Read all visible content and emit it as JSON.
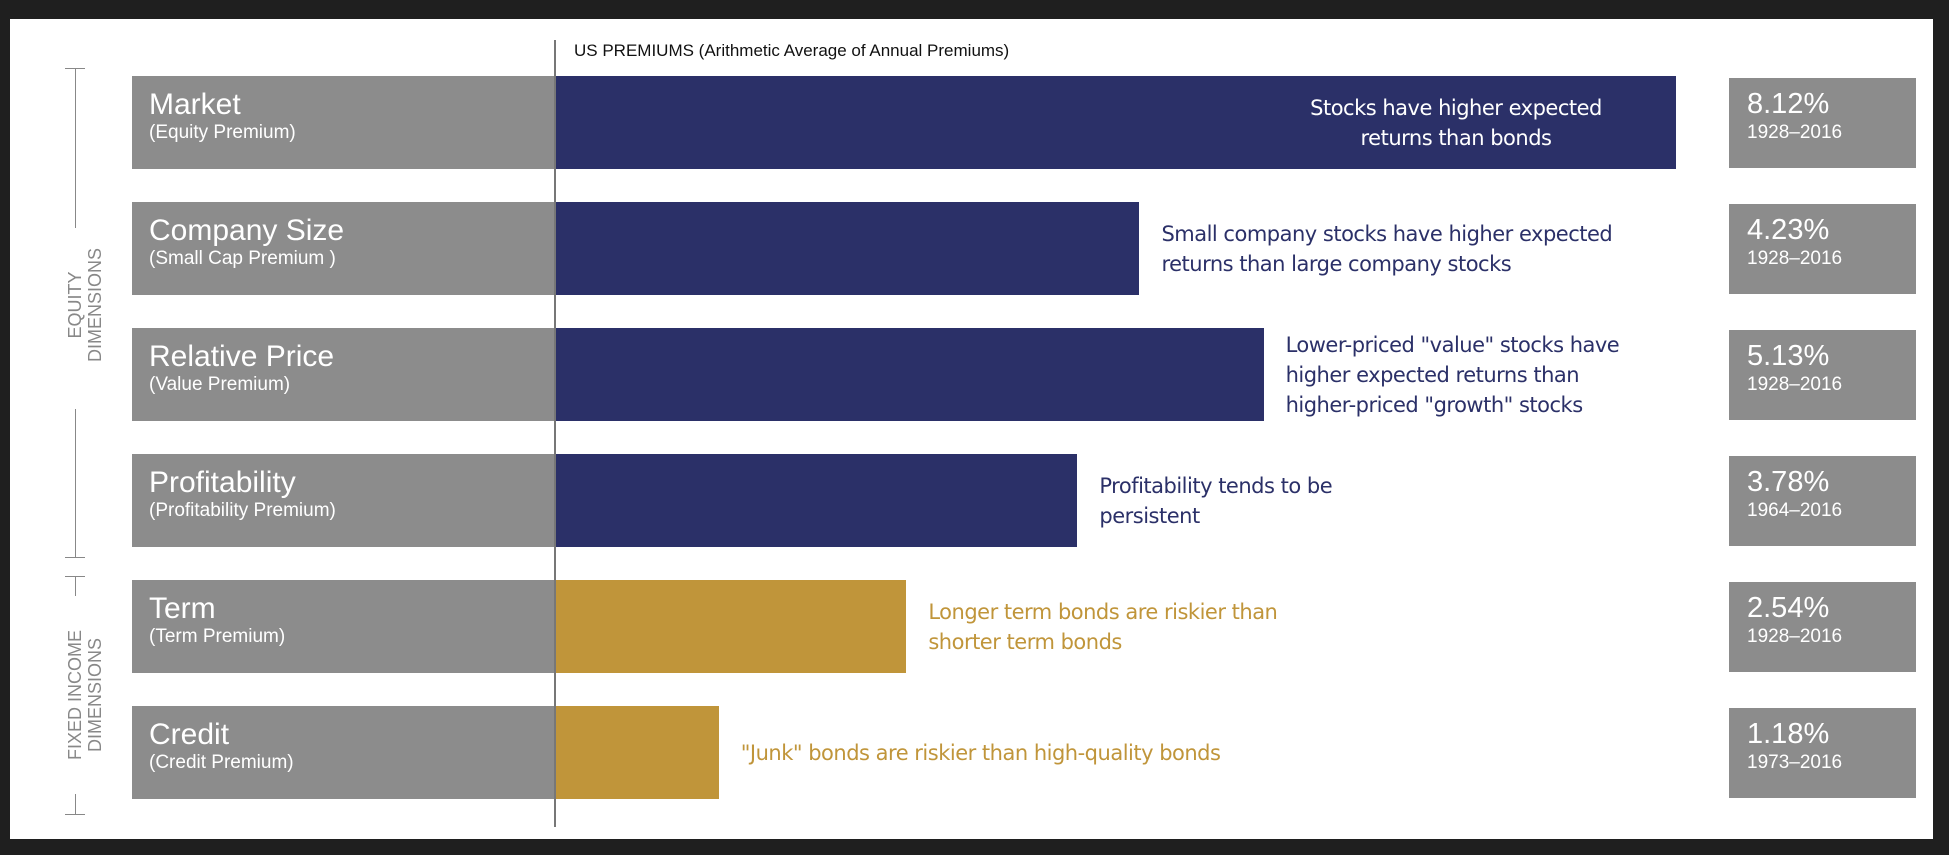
{
  "chart_data": {
    "type": "bar",
    "orientation": "horizontal",
    "title": "US PREMIUMS (Arithmetic Average of Annual Premiums)",
    "colors": {
      "equity": "#2b3068",
      "fixed_income": "#c0953a",
      "label_box": "#8c8c8c"
    },
    "groups": [
      {
        "label": [
          "EQUITY",
          "DIMENSIONS"
        ],
        "rows": [
          0,
          1,
          2,
          3
        ]
      },
      {
        "label": [
          "FIXED INCOME",
          "DIMENSIONS"
        ],
        "rows": [
          4,
          5
        ]
      }
    ],
    "rows": [
      {
        "title": "Market",
        "subtitle": "(Equity Premium)",
        "value": 8.12,
        "value_label": "8.12%",
        "years": "1928–2016",
        "group": "equity",
        "description": [
          "Stocks have higher expected",
          "returns than bonds"
        ]
      },
      {
        "title": "Company Size",
        "subtitle": "(Small Cap Premium )",
        "value": 4.23,
        "value_label": "4.23%",
        "years": "1928–2016",
        "group": "equity",
        "description": [
          "Small company stocks have higher expected",
          "returns than large company stocks"
        ]
      },
      {
        "title": "Relative Price",
        "subtitle": "(Value Premium)",
        "value": 5.13,
        "value_label": "5.13%",
        "years": "1928–2016",
        "group": "equity",
        "description": [
          "Lower-priced \"value\" stocks have",
          "higher expected returns than",
          "higher-priced \"growth\" stocks"
        ]
      },
      {
        "title": "Profitability",
        "subtitle": "(Profitability Premium)",
        "value": 3.78,
        "value_label": "3.78%",
        "years": "1964–2016",
        "group": "equity",
        "description": [
          "Profitability tends to be",
          "persistent"
        ]
      },
      {
        "title": "Term",
        "subtitle": "(Term Premium)",
        "value": 2.54,
        "value_label": "2.54%",
        "years": "1928–2016",
        "group": "fixed_income",
        "description": [
          "Longer term bonds are riskier than",
          "shorter term bonds"
        ]
      },
      {
        "title": "Credit",
        "subtitle": "(Credit Premium)",
        "value": 1.18,
        "value_label": "1.18%",
        "years": "1973–2016",
        "group": "fixed_income",
        "description": [
          "\"Junk\" bonds are riskier than high-quality bonds"
        ]
      }
    ]
  }
}
